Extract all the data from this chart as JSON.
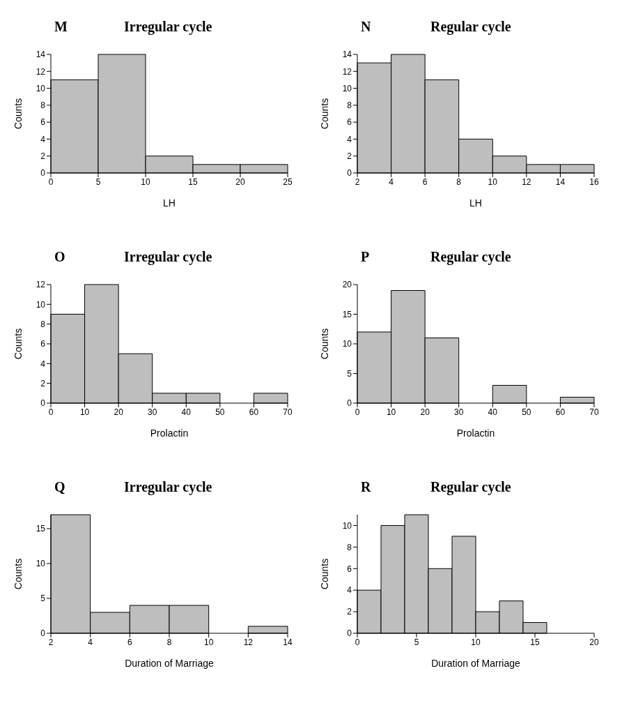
{
  "chart_data": [
    {
      "type": "histogram",
      "title": "Irregular cycle",
      "annotations": [
        "M"
      ],
      "xlabel": "LH",
      "ylabel": "Counts",
      "bins": [
        0,
        5,
        10,
        15,
        20,
        25
      ],
      "values": [
        11,
        14,
        2,
        1,
        1
      ],
      "color": "#bebebe",
      "xlim": [
        0,
        25
      ],
      "xticks": [
        0,
        5,
        10,
        15,
        20,
        25
      ],
      "ylim": [
        0,
        14
      ],
      "yticks": [
        0,
        2,
        4,
        6,
        8,
        10,
        12,
        14
      ],
      "grid": false
    },
    {
      "type": "histogram",
      "title": "Regular cycle",
      "annotations": [
        "N"
      ],
      "xlabel": "LH",
      "ylabel": "Counts",
      "bins": [
        2,
        4,
        6,
        8,
        10,
        12,
        14,
        16
      ],
      "values": [
        13,
        14,
        11,
        4,
        2,
        1,
        1
      ],
      "color": "#bebebe",
      "xlim": [
        2,
        16
      ],
      "xticks": [
        2,
        4,
        6,
        8,
        10,
        12,
        14,
        16
      ],
      "ylim": [
        0,
        14
      ],
      "yticks": [
        0,
        2,
        4,
        6,
        8,
        10,
        12,
        14
      ],
      "grid": false
    },
    {
      "type": "histogram",
      "title": "Irregular cycle",
      "annotations": [
        "O"
      ],
      "xlabel": "Prolactin",
      "ylabel": "Counts",
      "bins": [
        0,
        10,
        20,
        30,
        40,
        50,
        60,
        70
      ],
      "values": [
        9,
        12,
        5,
        1,
        1,
        0,
        1
      ],
      "color": "#bebebe",
      "xlim": [
        0,
        70
      ],
      "xticks": [
        0,
        10,
        20,
        30,
        40,
        50,
        60,
        70
      ],
      "ylim": [
        0,
        12
      ],
      "yticks": [
        0,
        2,
        4,
        6,
        8,
        10,
        12
      ],
      "grid": false
    },
    {
      "type": "histogram",
      "title": "Regular cycle",
      "annotations": [
        "P"
      ],
      "xlabel": "Prolactin",
      "ylabel": "Counts",
      "bins": [
        0,
        10,
        20,
        30,
        40,
        50,
        60,
        70
      ],
      "values": [
        12,
        19,
        11,
        0,
        3,
        0,
        1
      ],
      "color": "#bebebe",
      "xlim": [
        0,
        70
      ],
      "xticks": [
        0,
        10,
        20,
        30,
        40,
        50,
        60,
        70
      ],
      "ylim": [
        0,
        20
      ],
      "yticks": [
        0,
        5,
        10,
        15,
        20
      ],
      "grid": false
    },
    {
      "type": "histogram",
      "title": "Irregular cycle",
      "annotations": [
        "Q"
      ],
      "xlabel": "Duration of Marriage",
      "ylabel": "Counts",
      "bins": [
        2,
        4,
        6,
        8,
        10,
        12,
        14
      ],
      "values": [
        17,
        3,
        4,
        4,
        0,
        1
      ],
      "color": "#bebebe",
      "xlim": [
        2,
        14
      ],
      "xticks": [
        2,
        4,
        6,
        8,
        10,
        12,
        14
      ],
      "ylim": [
        0,
        17
      ],
      "yticks": [
        0,
        5,
        10,
        15
      ],
      "grid": false
    },
    {
      "type": "histogram",
      "title": "Regular cycle",
      "annotations": [
        "R"
      ],
      "xlabel": "Duration of Marriage",
      "ylabel": "Counts",
      "bins": [
        0,
        2,
        4,
        6,
        8,
        10,
        12,
        14,
        16
      ],
      "values": [
        4,
        10,
        11,
        6,
        9,
        2,
        3,
        1
      ],
      "color": "#bebebe",
      "xlim": [
        0,
        20
      ],
      "xticks": [
        0,
        5,
        10,
        15,
        20
      ],
      "ylim": [
        0,
        11
      ],
      "yticks": [
        0,
        2,
        4,
        6,
        8,
        10
      ],
      "grid": false
    }
  ]
}
